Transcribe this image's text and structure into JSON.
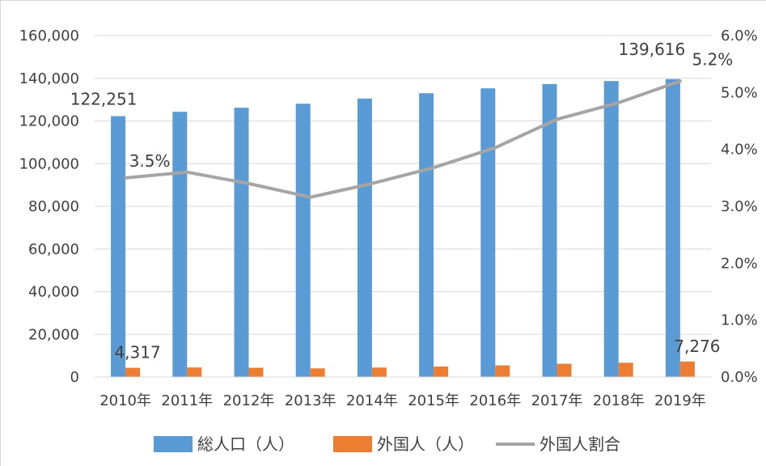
{
  "chart_data": {
    "type": "bar",
    "categories": [
      "2010年",
      "2011年",
      "2012年",
      "2013年",
      "2014年",
      "2015年",
      "2016年",
      "2017年",
      "2018年",
      "2019年"
    ],
    "series": [
      {
        "name": "総人口（人）",
        "type": "bar",
        "axis": "left",
        "color": "#5b9bd5",
        "values": [
          122251,
          124300,
          126200,
          128100,
          130500,
          133000,
          135300,
          137300,
          138700,
          139616
        ]
      },
      {
        "name": "外国人（人）",
        "type": "bar",
        "axis": "left",
        "color": "#ed7d31",
        "values": [
          4317,
          4480,
          4330,
          4050,
          4430,
          4900,
          5450,
          6220,
          6690,
          7276
        ]
      },
      {
        "name": "外国人割合",
        "type": "line",
        "axis": "right",
        "color": "#a5a5a5",
        "values": [
          0.035,
          0.036,
          0.034,
          0.0316,
          0.034,
          0.0368,
          0.0403,
          0.0453,
          0.0482,
          0.052
        ]
      }
    ],
    "y_left": {
      "lim": [
        0,
        160000
      ],
      "ticks": [
        0,
        20000,
        40000,
        60000,
        80000,
        100000,
        120000,
        140000,
        160000
      ],
      "tick_labels": [
        "0",
        "20,000",
        "40,000",
        "60,000",
        "80,000",
        "100,000",
        "120,000",
        "140,000",
        "160,000"
      ]
    },
    "y_right": {
      "lim": [
        0,
        0.06
      ],
      "ticks": [
        0,
        0.01,
        0.02,
        0.03,
        0.04,
        0.05,
        0.06
      ],
      "tick_labels": [
        "0.0%",
        "1.0%",
        "2.0%",
        "3.0%",
        "4.0%",
        "5.0%",
        "6.0%"
      ]
    },
    "data_labels": [
      {
        "series": 0,
        "index": 0,
        "text": "122,251"
      },
      {
        "series": 0,
        "index": 9,
        "text": "139,616"
      },
      {
        "series": 1,
        "index": 0,
        "text": "4,317"
      },
      {
        "series": 1,
        "index": 9,
        "text": "7,276"
      },
      {
        "series": 2,
        "index": 0,
        "text": "3.5%"
      },
      {
        "series": 2,
        "index": 9,
        "text": "5.2%"
      }
    ],
    "grid": true,
    "legend": "bottom",
    "title": "",
    "xlabel": "",
    "ylabel": ""
  }
}
